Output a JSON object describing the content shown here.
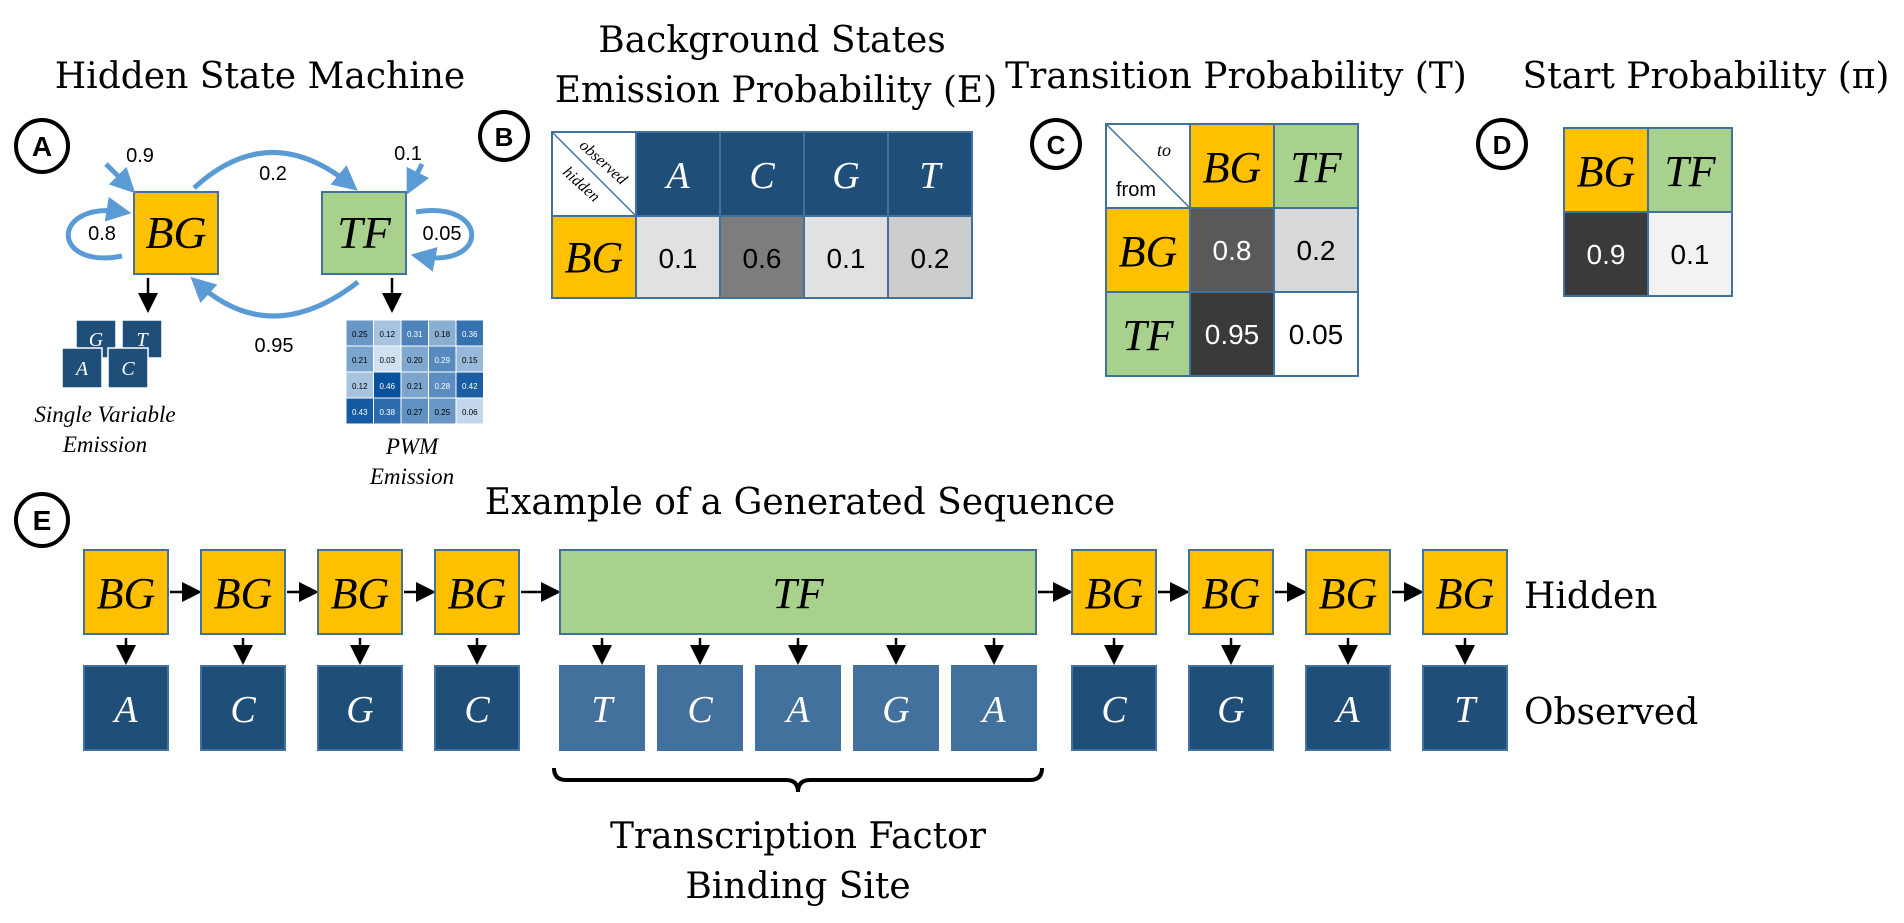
{
  "colors": {
    "bg_state": "#FFC000",
    "tf_state": "#A9D18E",
    "obs_dark": "#1F4E79",
    "obs_mid": "#41719C",
    "arrow_blue": "#5B9BD5",
    "stroke": "#41719C"
  },
  "panels": {
    "a": {
      "label": "A",
      "title": "Hidden State Machine",
      "bg_state": "BG",
      "tf_state": "TF",
      "p_start_bg": "0.9",
      "p_start_tf": "0.1",
      "p_bg_bg": "0.8",
      "p_bg_tf": "0.2",
      "p_tf_tf": "0.05",
      "p_tf_bg": "0.95",
      "single_caption_1": "Single Variable",
      "single_caption_2": "Emission",
      "pwm_caption_1": "PWM",
      "pwm_caption_2": "Emission",
      "mini_letters": [
        "G",
        "T",
        "A",
        "C"
      ],
      "pwm_values": [
        [
          "0.25",
          "0.12",
          "0.31",
          "0.18",
          "0.36"
        ],
        [
          "0.21",
          "0.03",
          "0.20",
          "0.29",
          "0.15"
        ],
        [
          "0.12",
          "0.46",
          "0.21",
          "0.28",
          "0.42"
        ],
        [
          "0.43",
          "0.38",
          "0.27",
          "0.25",
          "0.06"
        ]
      ]
    },
    "b": {
      "label": "B",
      "title_1": "Background States",
      "title_2": "Emission Probability (E)",
      "corner_top": "observed",
      "corner_bottom": "hidden",
      "columns": [
        "A",
        "C",
        "G",
        "T"
      ],
      "row": "BG",
      "values": [
        "0.1",
        "0.6",
        "0.1",
        "0.2"
      ]
    },
    "c": {
      "label": "C",
      "title": "Transition Probability (T)",
      "corner_top": "to",
      "corner_bottom": "from",
      "columns": [
        "BG",
        "TF"
      ],
      "rows": [
        "BG",
        "TF"
      ],
      "values": [
        [
          "0.8",
          "0.2"
        ],
        [
          "0.95",
          "0.05"
        ]
      ]
    },
    "d": {
      "label": "D",
      "title": "Start Probability (π)",
      "columns": [
        "BG",
        "TF"
      ],
      "values": [
        "0.9",
        "0.1"
      ]
    },
    "e": {
      "label": "E",
      "title": "Example of a Generated Sequence",
      "hidden_label": "Hidden",
      "observed_label": "Observed",
      "pre_hidden": [
        "BG",
        "BG",
        "BG",
        "BG"
      ],
      "tf_hidden": "TF",
      "post_hidden": [
        "BG",
        "BG",
        "BG",
        "BG"
      ],
      "pre_observed": [
        "A",
        "C",
        "G",
        "C"
      ],
      "tf_observed": [
        "T",
        "C",
        "A",
        "G",
        "A"
      ],
      "post_observed": [
        "C",
        "G",
        "A",
        "T"
      ],
      "brace_label_1": "Transcription Factor",
      "brace_label_2": "Binding Site"
    }
  }
}
